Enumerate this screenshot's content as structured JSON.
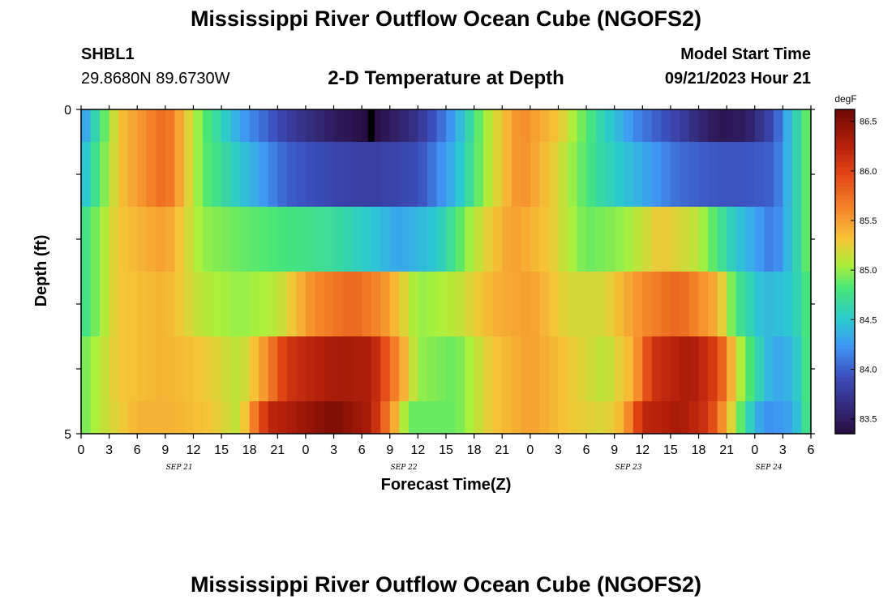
{
  "page": {
    "title": "Mississippi River Outflow Ocean Cube (NGOFS2)",
    "station_id": "SHBL1",
    "station_coords": "29.8680N  89.6730W",
    "subtitle": "2-D Temperature at Depth",
    "model_start_label": "Model Start Time",
    "model_start_value": "09/21/2023 Hour 21"
  },
  "chart_data": {
    "type": "heatmap",
    "title": "2-D Temperature at Depth",
    "xlabel": "Forecast Time(Z)",
    "ylabel": "Depth (ft)",
    "ylim": [
      0,
      5
    ],
    "y_ticks": [
      "0",
      "5"
    ],
    "x_range_hours": [
      0,
      78
    ],
    "x_tick_labels": [
      "0",
      "3",
      "6",
      "9",
      "12",
      "15",
      "18",
      "21",
      "0",
      "3",
      "6",
      "9",
      "12",
      "15",
      "18",
      "21",
      "0",
      "3",
      "6",
      "9",
      "12",
      "15",
      "18",
      "21",
      "0",
      "3",
      "6"
    ],
    "date_labels": [
      {
        "label": "SEP 21",
        "at_tick": 3.5
      },
      {
        "label": "SEP 22",
        "at_tick": 11.5
      },
      {
        "label": "SEP 23",
        "at_tick": 19.5
      },
      {
        "label": "SEP 24",
        "at_tick": 24.5
      }
    ],
    "colorbar": {
      "unit": "degF",
      "min": 83.35,
      "max": 86.62,
      "ticks": [
        "83.5",
        "84.0",
        "84.5",
        "85.0",
        "85.5",
        "86.0",
        "86.5"
      ]
    },
    "layers": [
      {
        "depth": "0-0.5 ft",
        "keys": [
          [
            0,
            84.2
          ],
          [
            4,
            85.3
          ],
          [
            9,
            85.8
          ],
          [
            13,
            84.9
          ],
          [
            17,
            84.3
          ],
          [
            22,
            83.8
          ],
          [
            27,
            83.5
          ],
          [
            31,
            83.35
          ],
          [
            36,
            83.7
          ],
          [
            40,
            84.3
          ],
          [
            43,
            85.0
          ],
          [
            47,
            85.6
          ],
          [
            51,
            85.3
          ],
          [
            55,
            84.7
          ],
          [
            59,
            84.2
          ],
          [
            64,
            83.8
          ],
          [
            68,
            83.45
          ],
          [
            71,
            83.5
          ],
          [
            74,
            83.9
          ],
          [
            76,
            84.5
          ],
          [
            78,
            85.0
          ]
        ]
      },
      {
        "depth": "0.5-1.5 ft",
        "keys": [
          [
            0,
            84.4
          ],
          [
            4,
            85.3
          ],
          [
            9,
            85.8
          ],
          [
            13,
            84.9
          ],
          [
            17,
            84.5
          ],
          [
            22,
            84.0
          ],
          [
            27,
            83.85
          ],
          [
            31,
            83.8
          ],
          [
            36,
            83.9
          ],
          [
            40,
            84.4
          ],
          [
            43,
            85.0
          ],
          [
            47,
            85.6
          ],
          [
            51,
            85.2
          ],
          [
            55,
            84.7
          ],
          [
            59,
            84.4
          ],
          [
            64,
            84.05
          ],
          [
            68,
            83.95
          ],
          [
            71,
            83.95
          ],
          [
            74,
            84.0
          ],
          [
            76,
            84.5
          ],
          [
            78,
            85.0
          ]
        ]
      },
      {
        "depth": "1.5-2.5 ft",
        "keys": [
          [
            0,
            84.7
          ],
          [
            4,
            85.3
          ],
          [
            9,
            85.5
          ],
          [
            13,
            85.0
          ],
          [
            17,
            84.9
          ],
          [
            22,
            84.8
          ],
          [
            27,
            84.7
          ],
          [
            31,
            84.5
          ],
          [
            34,
            84.3
          ],
          [
            38,
            84.5
          ],
          [
            42,
            85.1
          ],
          [
            46,
            85.5
          ],
          [
            50,
            85.3
          ],
          [
            54,
            84.9
          ],
          [
            58,
            85.0
          ],
          [
            62,
            85.3
          ],
          [
            66,
            85.1
          ],
          [
            70,
            84.5
          ],
          [
            74,
            84.1
          ],
          [
            76,
            84.5
          ],
          [
            78,
            85.0
          ]
        ]
      },
      {
        "depth": "2.5-3.5 ft",
        "keys": [
          [
            0,
            84.7
          ],
          [
            4,
            85.3
          ],
          [
            9,
            85.4
          ],
          [
            13,
            85.1
          ],
          [
            17,
            85.0
          ],
          [
            21,
            85.1
          ],
          [
            25,
            85.6
          ],
          [
            29,
            85.8
          ],
          [
            32,
            85.6
          ],
          [
            36,
            85.0
          ],
          [
            40,
            85.1
          ],
          [
            44,
            85.4
          ],
          [
            48,
            85.5
          ],
          [
            52,
            85.2
          ],
          [
            56,
            85.2
          ],
          [
            60,
            85.6
          ],
          [
            64,
            85.8
          ],
          [
            68,
            85.4
          ],
          [
            70,
            84.8
          ],
          [
            73,
            84.4
          ],
          [
            76,
            84.5
          ],
          [
            78,
            84.9
          ]
        ]
      },
      {
        "depth": "3.5-4.5 ft",
        "keys": [
          [
            0,
            84.9
          ],
          [
            4,
            85.3
          ],
          [
            9,
            85.4
          ],
          [
            13,
            85.3
          ],
          [
            17,
            85.1
          ],
          [
            19,
            85.4
          ],
          [
            22,
            86.1
          ],
          [
            27,
            86.35
          ],
          [
            31,
            86.3
          ],
          [
            33,
            85.8
          ],
          [
            36,
            85.0
          ],
          [
            40,
            84.9
          ],
          [
            44,
            85.3
          ],
          [
            48,
            85.5
          ],
          [
            52,
            85.3
          ],
          [
            56,
            85.1
          ],
          [
            59,
            85.4
          ],
          [
            61,
            86.1
          ],
          [
            65,
            86.35
          ],
          [
            68,
            86.0
          ],
          [
            70,
            85.2
          ],
          [
            72,
            84.7
          ],
          [
            74,
            84.3
          ],
          [
            76,
            84.4
          ],
          [
            78,
            84.9
          ]
        ]
      },
      {
        "depth": "4.5-5 ft",
        "keys": [
          [
            0,
            84.9
          ],
          [
            2,
            85.1
          ],
          [
            6,
            85.4
          ],
          [
            10,
            85.4
          ],
          [
            14,
            85.3
          ],
          [
            17,
            85.1
          ],
          [
            18,
            85.5
          ],
          [
            20,
            86.2
          ],
          [
            23,
            86.35
          ],
          [
            27,
            86.55
          ],
          [
            31,
            86.3
          ],
          [
            33,
            85.6
          ],
          [
            35,
            84.9
          ],
          [
            40,
            84.9
          ],
          [
            44,
            85.3
          ],
          [
            48,
            85.5
          ],
          [
            52,
            85.3
          ],
          [
            56,
            85.2
          ],
          [
            58,
            85.4
          ],
          [
            60,
            86.2
          ],
          [
            64,
            86.35
          ],
          [
            67,
            86.1
          ],
          [
            69,
            85.4
          ],
          [
            71,
            84.7
          ],
          [
            73,
            84.2
          ],
          [
            76,
            84.3
          ],
          [
            78,
            84.9
          ]
        ]
      }
    ],
    "marker": {
      "hour": 31,
      "layer": 0,
      "color": "#000000"
    }
  }
}
